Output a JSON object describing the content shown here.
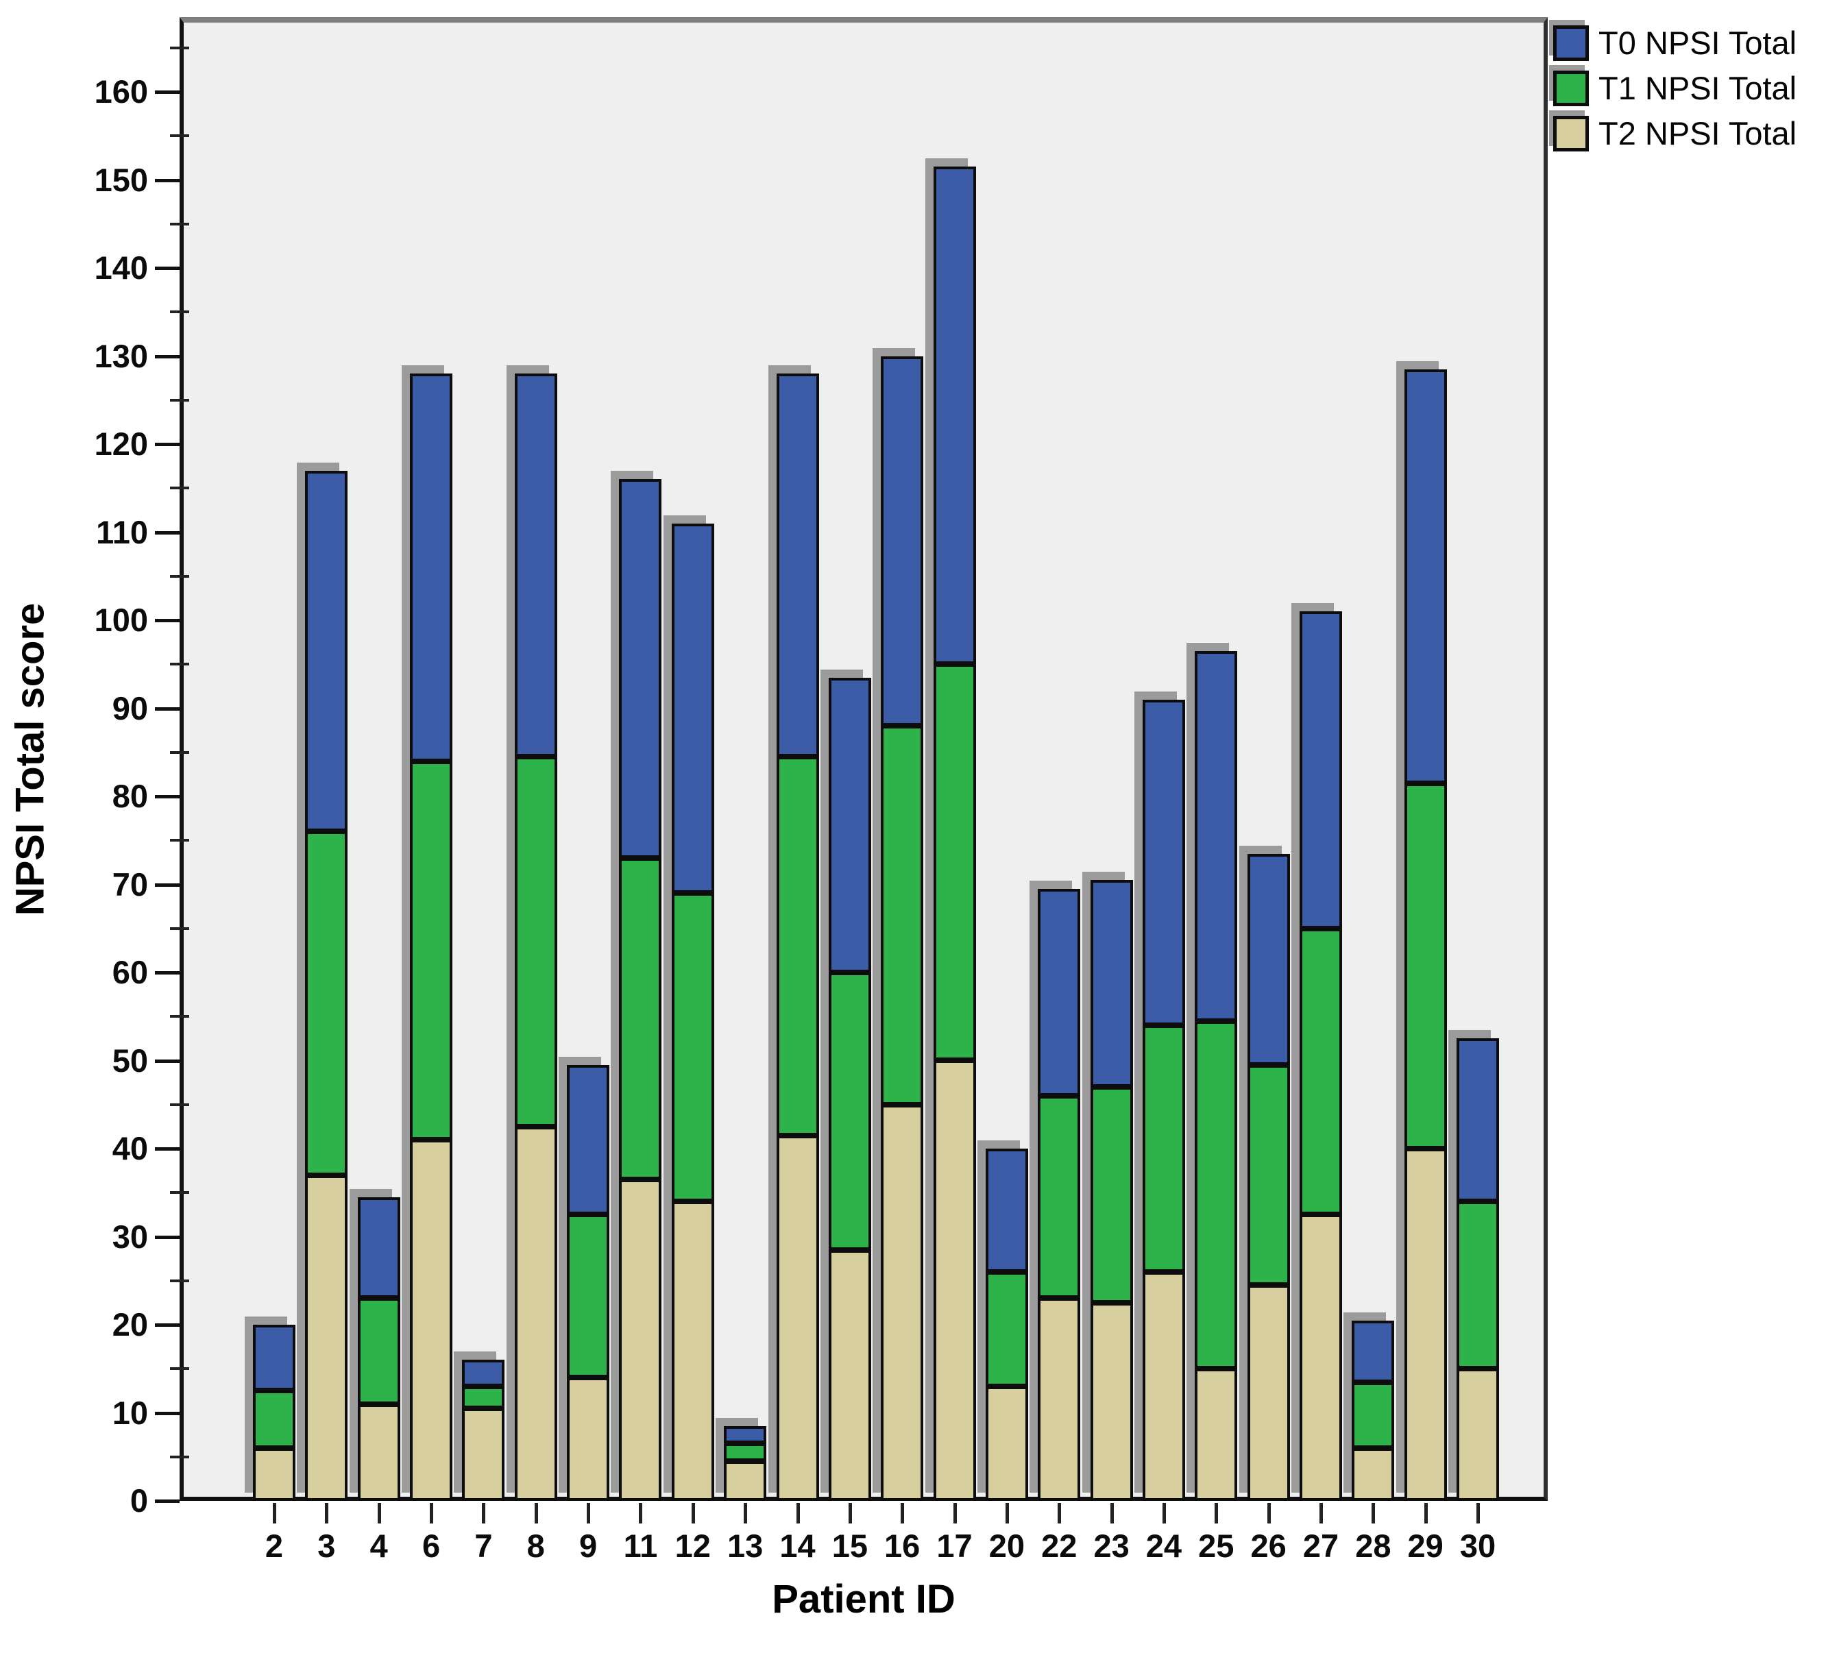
{
  "axes": {
    "y_title": "NPSI Total score",
    "x_title": "Patient ID",
    "y_tick_labels": [
      "0",
      "10",
      "20",
      "30",
      "40",
      "50",
      "60",
      "70",
      "80",
      "90",
      "100",
      "110",
      "120",
      "130",
      "140",
      "150",
      "160"
    ]
  },
  "legend": {
    "items": [
      {
        "label": "T0 NPSI Total",
        "color": "#3d5ca8"
      },
      {
        "label": "T1 NPSI Total",
        "color": "#2db34a"
      },
      {
        "label": "T2 NPSI Total",
        "color": "#d7cf9e"
      }
    ]
  },
  "colors": {
    "plot_background": "#f0efef",
    "page_background": "#ffffff",
    "bar_border": "#0d0d0d",
    "bar_shadow": "#9b9b9b",
    "frame_top": "#7f7f7f",
    "t0_blue": "#3d5ca8",
    "t1_green": "#2db34a",
    "t2_tan": "#d7cf9e"
  },
  "chart_data": {
    "type": "bar",
    "stacked": true,
    "title": "",
    "xlabel": "Patient ID",
    "ylabel": "NPSI Total score",
    "ylim": [
      0,
      168.5
    ],
    "ytick_step": 10,
    "ytick_minor_step": 5,
    "grid": false,
    "legend_position": "top-right-outside",
    "stack_order_bottom_to_top": [
      "T2 NPSI Total",
      "T1 NPSI Total",
      "T0 NPSI Total"
    ],
    "categories": [
      "2",
      "3",
      "4",
      "6",
      "7",
      "8",
      "9",
      "11",
      "12",
      "13",
      "14",
      "15",
      "16",
      "17",
      "20",
      "22",
      "23",
      "24",
      "25",
      "26",
      "27",
      "28",
      "29",
      "30"
    ],
    "series": [
      {
        "name": "T0 NPSI Total",
        "color": "#3d5ca8",
        "values": [
          7.5,
          41,
          11.5,
          44,
          3,
          43.5,
          17,
          43,
          42,
          2,
          43.5,
          33.5,
          42,
          56.5,
          14,
          23.5,
          23.5,
          37,
          42,
          24,
          36,
          7,
          47,
          18.5
        ]
      },
      {
        "name": "T1 NPSI Total",
        "color": "#2db34a",
        "values": [
          6.5,
          39,
          12,
          43,
          2.5,
          42,
          18.5,
          36.5,
          35,
          2,
          43,
          31.5,
          43,
          45,
          13,
          23,
          24.5,
          28,
          39.5,
          25,
          32.5,
          7.5,
          41.5,
          19
        ]
      },
      {
        "name": "T2 NPSI Total",
        "color": "#d7cf9e",
        "values": [
          6,
          37,
          11,
          41,
          10.5,
          42.5,
          14,
          36.5,
          34,
          4.5,
          41.5,
          28.5,
          45,
          50,
          13,
          23,
          22.5,
          26,
          15,
          24.5,
          32.5,
          6,
          40,
          15
        ]
      }
    ],
    "stacked_totals": [
      20,
      117,
      34.5,
      128,
      16,
      128,
      49.5,
      116,
      111,
      8.5,
      128,
      93.5,
      130,
      151.5,
      40,
      69.5,
      70.5,
      91,
      96.5,
      73.5,
      101,
      20.5,
      128.5,
      52.5
    ]
  }
}
